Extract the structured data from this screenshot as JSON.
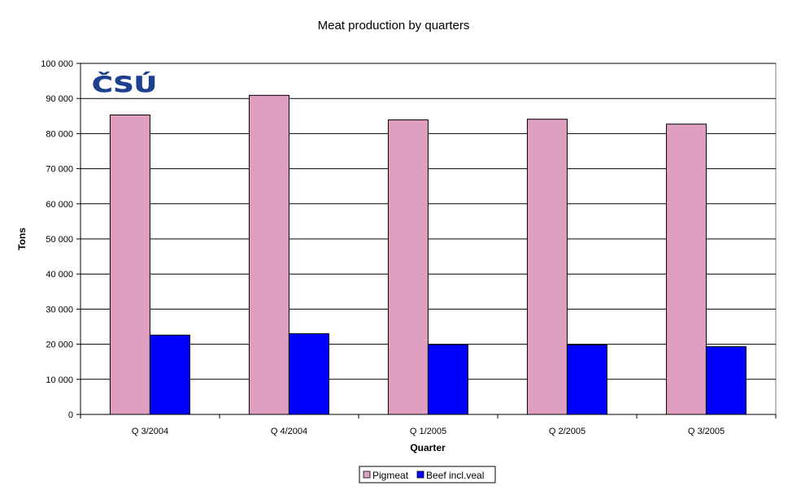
{
  "chart_data": {
    "type": "bar",
    "title": "Meat production by quarters",
    "xlabel": "Quarter",
    "ylabel": "Tons",
    "categories": [
      "Q 3/2004",
      "Q 4/2004",
      "Q 1/2005",
      "Q 2/2005",
      "Q 3/2005"
    ],
    "series": [
      {
        "name": "Pigmeat",
        "color": "#df9fc0",
        "values": [
          85300,
          90900,
          83900,
          84100,
          82700
        ]
      },
      {
        "name": "Beef incl.veal",
        "color": "#0000ff",
        "values": [
          22600,
          23000,
          19900,
          19800,
          19300
        ]
      }
    ],
    "ylim": [
      0,
      100000
    ],
    "yticks": [
      0,
      10000,
      20000,
      30000,
      40000,
      50000,
      60000,
      70000,
      80000,
      90000,
      100000
    ],
    "ytick_labels": [
      "0",
      "10 000",
      "20 000",
      "30 000",
      "40 000",
      "50 000",
      "60 000",
      "70 000",
      "80 000",
      "90 000",
      "100 000"
    ],
    "grid": true,
    "legend_position": "bottom-center",
    "logo_text": "ČSÚ"
  }
}
